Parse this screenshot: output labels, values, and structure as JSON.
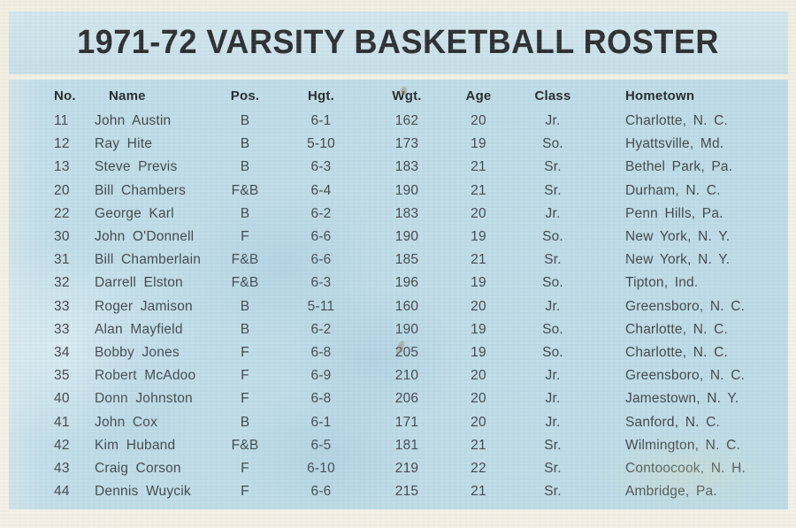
{
  "title": "1971-72 VARSITY BASKETBALL ROSTER",
  "colors": {
    "card_background": "#f4f0e2",
    "title_band": "#cbe2ea",
    "panel_background": "#bcdae6",
    "header_text": "#1c2125",
    "body_text": "#3b4246",
    "title_text": "#25282b"
  },
  "table": {
    "columns": [
      "No.",
      "Name",
      "Pos.",
      "Hgt.",
      "Wgt.",
      "Age",
      "Class",
      "Hometown"
    ],
    "rows": [
      {
        "no": "11",
        "name": "John Austin",
        "pos": "B",
        "hgt": "6-1",
        "wgt": "162",
        "age": "20",
        "class": "Jr.",
        "hometown": "Charlotte, N. C."
      },
      {
        "no": "12",
        "name": "Ray Hite",
        "pos": "B",
        "hgt": "5-10",
        "wgt": "173",
        "age": "19",
        "class": "So.",
        "hometown": "Hyattsville, Md."
      },
      {
        "no": "13",
        "name": "Steve Previs",
        "pos": "B",
        "hgt": "6-3",
        "wgt": "183",
        "age": "21",
        "class": "Sr.",
        "hometown": "Bethel Park, Pa."
      },
      {
        "no": "20",
        "name": "Bill Chambers",
        "pos": "F&B",
        "hgt": "6-4",
        "wgt": "190",
        "age": "21",
        "class": "Sr.",
        "hometown": "Durham, N. C."
      },
      {
        "no": "22",
        "name": "George Karl",
        "pos": "B",
        "hgt": "6-2",
        "wgt": "183",
        "age": "20",
        "class": "Jr.",
        "hometown": "Penn Hills, Pa."
      },
      {
        "no": "30",
        "name": "John O'Donnell",
        "pos": "F",
        "hgt": "6-6",
        "wgt": "190",
        "age": "19",
        "class": "So.",
        "hometown": "New York, N. Y."
      },
      {
        "no": "31",
        "name": "Bill Chamberlain",
        "pos": "F&B",
        "hgt": "6-6",
        "wgt": "185",
        "age": "21",
        "class": "Sr.",
        "hometown": "New York, N. Y."
      },
      {
        "no": "32",
        "name": "Darrell Elston",
        "pos": "F&B",
        "hgt": "6-3",
        "wgt": "196",
        "age": "19",
        "class": "So.",
        "hometown": "Tipton, Ind."
      },
      {
        "no": "33",
        "name": "Roger Jamison",
        "pos": "B",
        "hgt": "5-11",
        "wgt": "160",
        "age": "20",
        "class": "Jr.",
        "hometown": "Greensboro, N. C."
      },
      {
        "no": "33",
        "name": "Alan Mayfield",
        "pos": "B",
        "hgt": "6-2",
        "wgt": "190",
        "age": "19",
        "class": "So.",
        "hometown": "Charlotte, N. C."
      },
      {
        "no": "34",
        "name": "Bobby Jones",
        "pos": "F",
        "hgt": "6-8",
        "wgt": "205",
        "age": "19",
        "class": "So.",
        "hometown": "Charlotte, N. C."
      },
      {
        "no": "35",
        "name": "Robert McAdoo",
        "pos": "F",
        "hgt": "6-9",
        "wgt": "210",
        "age": "20",
        "class": "Jr.",
        "hometown": "Greensboro, N. C."
      },
      {
        "no": "40",
        "name": "Donn Johnston",
        "pos": "F",
        "hgt": "6-8",
        "wgt": "206",
        "age": "20",
        "class": "Jr.",
        "hometown": "Jamestown, N. Y."
      },
      {
        "no": "41",
        "name": "John Cox",
        "pos": "B",
        "hgt": "6-1",
        "wgt": "171",
        "age": "20",
        "class": "Jr.",
        "hometown": "Sanford, N. C."
      },
      {
        "no": "42",
        "name": "Kim Huband",
        "pos": "F&B",
        "hgt": "6-5",
        "wgt": "181",
        "age": "21",
        "class": "Sr.",
        "hometown": "Wilmington, N. C."
      },
      {
        "no": "43",
        "name": "Craig Corson",
        "pos": "F",
        "hgt": "6-10",
        "wgt": "219",
        "age": "22",
        "class": "Sr.",
        "hometown": "Contoocook, N. H."
      },
      {
        "no": "44",
        "name": "Dennis Wuycik",
        "pos": "F",
        "hgt": "6-6",
        "wgt": "215",
        "age": "21",
        "class": "Sr.",
        "hometown": "Ambridge, Pa."
      }
    ]
  }
}
